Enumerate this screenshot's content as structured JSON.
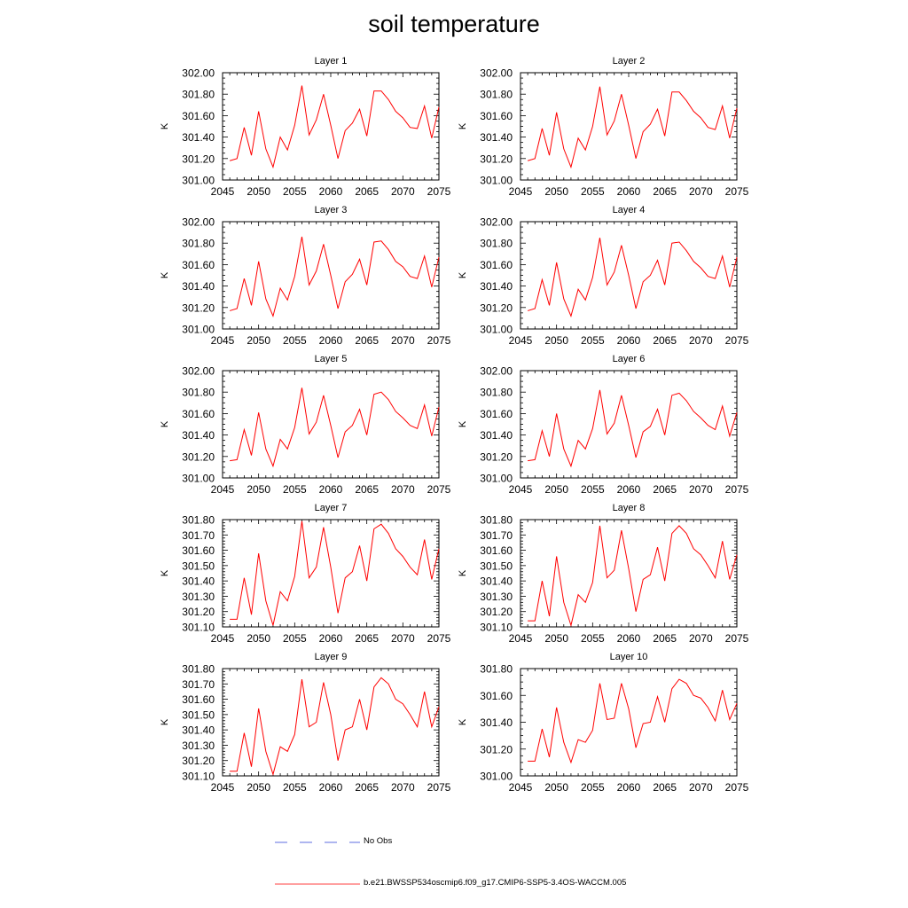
{
  "title": "soil temperature",
  "legend": {
    "obs_label": "No Obs",
    "model_label": "b.e21.BWSSP534oscmip6.f09_g17.CMIP6-SSP5-3.4OS-WACCM.005",
    "obs_color": "#2a3fd6",
    "model_color": "#ff0000"
  },
  "chart_data": [
    {
      "type": "line",
      "title": "Layer 1",
      "ylabel": "K",
      "xlim": [
        2045,
        2075
      ],
      "ylim": [
        301.0,
        302.0
      ],
      "yticks": [
        "301.00",
        "301.20",
        "301.40",
        "301.60",
        "301.80",
        "302.00"
      ],
      "xticks": [
        "2045",
        "2050",
        "2055",
        "2060",
        "2065",
        "2070",
        "2075"
      ],
      "series": [
        {
          "color": "#ff0000",
          "x": [
            2046,
            2047,
            2048,
            2049,
            2050,
            2051,
            2052,
            2053,
            2054,
            2055,
            2056,
            2057,
            2058,
            2059,
            2060,
            2061,
            2062,
            2063,
            2064,
            2065,
            2066,
            2067,
            2068,
            2069,
            2070,
            2071,
            2072,
            2073,
            2074,
            2075
          ],
          "values": [
            301.18,
            301.2,
            301.49,
            301.23,
            301.64,
            301.29,
            301.12,
            301.4,
            301.28,
            301.51,
            301.88,
            301.42,
            301.56,
            301.8,
            301.51,
            301.2,
            301.46,
            301.53,
            301.66,
            301.41,
            301.83,
            301.83,
            301.75,
            301.64,
            301.58,
            301.49,
            301.48,
            301.69,
            301.39,
            301.68
          ]
        }
      ]
    },
    {
      "type": "line",
      "title": "Layer 2",
      "ylabel": "K",
      "xlim": [
        2045,
        2075
      ],
      "ylim": [
        301.0,
        302.0
      ],
      "yticks": [
        "301.00",
        "301.20",
        "301.40",
        "301.60",
        "301.80",
        "302.00"
      ],
      "xticks": [
        "2045",
        "2050",
        "2055",
        "2060",
        "2065",
        "2070",
        "2075"
      ],
      "series": [
        {
          "color": "#ff0000",
          "x": [
            2046,
            2047,
            2048,
            2049,
            2050,
            2051,
            2052,
            2053,
            2054,
            2055,
            2056,
            2057,
            2058,
            2059,
            2060,
            2061,
            2062,
            2063,
            2064,
            2065,
            2066,
            2067,
            2068,
            2069,
            2070,
            2071,
            2072,
            2073,
            2074,
            2075
          ],
          "values": [
            301.18,
            301.2,
            301.48,
            301.23,
            301.63,
            301.29,
            301.12,
            301.39,
            301.28,
            301.5,
            301.87,
            301.42,
            301.55,
            301.8,
            301.51,
            301.2,
            301.45,
            301.52,
            301.66,
            301.41,
            301.82,
            301.82,
            301.74,
            301.64,
            301.58,
            301.49,
            301.47,
            301.69,
            301.39,
            301.67
          ]
        }
      ]
    },
    {
      "type": "line",
      "title": "Layer 3",
      "ylabel": "K",
      "xlim": [
        2045,
        2075
      ],
      "ylim": [
        301.0,
        302.0
      ],
      "yticks": [
        "301.00",
        "301.20",
        "301.40",
        "301.60",
        "301.80",
        "302.00"
      ],
      "xticks": [
        "2045",
        "2050",
        "2055",
        "2060",
        "2065",
        "2070",
        "2075"
      ],
      "series": [
        {
          "color": "#ff0000",
          "x": [
            2046,
            2047,
            2048,
            2049,
            2050,
            2051,
            2052,
            2053,
            2054,
            2055,
            2056,
            2057,
            2058,
            2059,
            2060,
            2061,
            2062,
            2063,
            2064,
            2065,
            2066,
            2067,
            2068,
            2069,
            2070,
            2071,
            2072,
            2073,
            2074,
            2075
          ],
          "values": [
            301.17,
            301.19,
            301.47,
            301.22,
            301.63,
            301.28,
            301.12,
            301.38,
            301.27,
            301.49,
            301.86,
            301.41,
            301.54,
            301.79,
            301.5,
            301.19,
            301.44,
            301.51,
            301.65,
            301.41,
            301.81,
            301.82,
            301.74,
            301.63,
            301.58,
            301.49,
            301.47,
            301.68,
            301.39,
            301.67
          ]
        }
      ]
    },
    {
      "type": "line",
      "title": "Layer 4",
      "ylabel": "K",
      "xlim": [
        2045,
        2075
      ],
      "ylim": [
        301.0,
        302.0
      ],
      "yticks": [
        "301.00",
        "301.20",
        "301.40",
        "301.60",
        "301.80",
        "302.00"
      ],
      "xticks": [
        "2045",
        "2050",
        "2055",
        "2060",
        "2065",
        "2070",
        "2075"
      ],
      "series": [
        {
          "color": "#ff0000",
          "x": [
            2046,
            2047,
            2048,
            2049,
            2050,
            2051,
            2052,
            2053,
            2054,
            2055,
            2056,
            2057,
            2058,
            2059,
            2060,
            2061,
            2062,
            2063,
            2064,
            2065,
            2066,
            2067,
            2068,
            2069,
            2070,
            2071,
            2072,
            2073,
            2074,
            2075
          ],
          "values": [
            301.17,
            301.19,
            301.46,
            301.22,
            301.62,
            301.28,
            301.12,
            301.37,
            301.27,
            301.48,
            301.85,
            301.41,
            301.53,
            301.78,
            301.5,
            301.19,
            301.44,
            301.5,
            301.64,
            301.41,
            301.8,
            301.81,
            301.73,
            301.63,
            301.57,
            301.49,
            301.47,
            301.68,
            301.39,
            301.67
          ]
        }
      ]
    },
    {
      "type": "line",
      "title": "Layer 5",
      "ylabel": "K",
      "xlim": [
        2045,
        2075
      ],
      "ylim": [
        301.0,
        302.0
      ],
      "yticks": [
        "301.00",
        "301.20",
        "301.40",
        "301.60",
        "301.80",
        "302.00"
      ],
      "xticks": [
        "2045",
        "2050",
        "2055",
        "2060",
        "2065",
        "2070",
        "2075"
      ],
      "series": [
        {
          "color": "#ff0000",
          "x": [
            2046,
            2047,
            2048,
            2049,
            2050,
            2051,
            2052,
            2053,
            2054,
            2055,
            2056,
            2057,
            2058,
            2059,
            2060,
            2061,
            2062,
            2063,
            2064,
            2065,
            2066,
            2067,
            2068,
            2069,
            2070,
            2071,
            2072,
            2073,
            2074,
            2075
          ],
          "values": [
            301.16,
            301.17,
            301.45,
            301.21,
            301.61,
            301.27,
            301.11,
            301.36,
            301.27,
            301.47,
            301.84,
            301.41,
            301.52,
            301.77,
            301.49,
            301.19,
            301.43,
            301.49,
            301.64,
            301.4,
            301.78,
            301.8,
            301.73,
            301.62,
            301.56,
            301.49,
            301.46,
            301.68,
            301.39,
            301.66
          ]
        }
      ]
    },
    {
      "type": "line",
      "title": "Layer 6",
      "ylabel": "K",
      "xlim": [
        2045,
        2075
      ],
      "ylim": [
        301.0,
        302.0
      ],
      "yticks": [
        "301.00",
        "301.20",
        "301.40",
        "301.60",
        "301.80",
        "302.00"
      ],
      "xticks": [
        "2045",
        "2050",
        "2055",
        "2060",
        "2065",
        "2070",
        "2075"
      ],
      "series": [
        {
          "color": "#ff0000",
          "x": [
            2046,
            2047,
            2048,
            2049,
            2050,
            2051,
            2052,
            2053,
            2054,
            2055,
            2056,
            2057,
            2058,
            2059,
            2060,
            2061,
            2062,
            2063,
            2064,
            2065,
            2066,
            2067,
            2068,
            2069,
            2070,
            2071,
            2072,
            2073,
            2074,
            2075
          ],
          "values": [
            301.16,
            301.17,
            301.44,
            301.2,
            301.6,
            301.27,
            301.11,
            301.35,
            301.27,
            301.46,
            301.82,
            301.41,
            301.51,
            301.77,
            301.49,
            301.19,
            301.43,
            301.48,
            301.64,
            301.4,
            301.77,
            301.79,
            301.72,
            301.62,
            301.56,
            301.49,
            301.45,
            301.67,
            301.39,
            301.61
          ]
        }
      ]
    },
    {
      "type": "line",
      "title": "Layer 7",
      "ylabel": "K",
      "xlim": [
        2045,
        2075
      ],
      "ylim": [
        301.1,
        301.8
      ],
      "yticks": [
        "301.10",
        "301.20",
        "301.30",
        "301.40",
        "301.50",
        "301.60",
        "301.70",
        "301.80"
      ],
      "xticks": [
        "2045",
        "2050",
        "2055",
        "2060",
        "2065",
        "2070",
        "2075"
      ],
      "series": [
        {
          "color": "#ff0000",
          "x": [
            2046,
            2047,
            2048,
            2049,
            2050,
            2051,
            2052,
            2053,
            2054,
            2055,
            2056,
            2057,
            2058,
            2059,
            2060,
            2061,
            2062,
            2063,
            2064,
            2065,
            2066,
            2067,
            2068,
            2069,
            2070,
            2071,
            2072,
            2073,
            2074,
            2075
          ],
          "values": [
            301.15,
            301.15,
            301.42,
            301.18,
            301.58,
            301.27,
            301.11,
            301.33,
            301.27,
            301.43,
            301.79,
            301.42,
            301.49,
            301.75,
            301.49,
            301.19,
            301.42,
            301.46,
            301.63,
            301.4,
            301.74,
            301.77,
            301.71,
            301.61,
            301.56,
            301.49,
            301.44,
            301.67,
            301.41,
            301.61
          ]
        }
      ]
    },
    {
      "type": "line",
      "title": "Layer 8",
      "ylabel": "K",
      "xlim": [
        2045,
        2075
      ],
      "ylim": [
        301.1,
        301.8
      ],
      "yticks": [
        "301.10",
        "301.20",
        "301.30",
        "301.40",
        "301.50",
        "301.60",
        "301.70",
        "301.80"
      ],
      "xticks": [
        "2045",
        "2050",
        "2055",
        "2060",
        "2065",
        "2070",
        "2075"
      ],
      "series": [
        {
          "color": "#ff0000",
          "x": [
            2046,
            2047,
            2048,
            2049,
            2050,
            2051,
            2052,
            2053,
            2054,
            2055,
            2056,
            2057,
            2058,
            2059,
            2060,
            2061,
            2062,
            2063,
            2064,
            2065,
            2066,
            2067,
            2068,
            2069,
            2070,
            2071,
            2072,
            2073,
            2074,
            2075
          ],
          "values": [
            301.14,
            301.14,
            301.4,
            301.17,
            301.56,
            301.26,
            301.11,
            301.31,
            301.26,
            301.39,
            301.76,
            301.42,
            301.47,
            301.73,
            301.48,
            301.2,
            301.41,
            301.44,
            301.62,
            301.4,
            301.71,
            301.76,
            301.71,
            301.61,
            301.57,
            301.5,
            301.42,
            301.66,
            301.41,
            301.57
          ]
        }
      ]
    },
    {
      "type": "line",
      "title": "Layer 9",
      "ylabel": "K",
      "xlim": [
        2045,
        2075
      ],
      "ylim": [
        301.1,
        301.8
      ],
      "yticks": [
        "301.10",
        "301.20",
        "301.30",
        "301.40",
        "301.50",
        "301.60",
        "301.70",
        "301.80"
      ],
      "xticks": [
        "2045",
        "2050",
        "2055",
        "2060",
        "2065",
        "2070",
        "2075"
      ],
      "series": [
        {
          "color": "#ff0000",
          "x": [
            2046,
            2047,
            2048,
            2049,
            2050,
            2051,
            2052,
            2053,
            2054,
            2055,
            2056,
            2057,
            2058,
            2059,
            2060,
            2061,
            2062,
            2063,
            2064,
            2065,
            2066,
            2067,
            2068,
            2069,
            2070,
            2071,
            2072,
            2073,
            2074,
            2075
          ],
          "values": [
            301.13,
            301.13,
            301.38,
            301.16,
            301.54,
            301.26,
            301.11,
            301.29,
            301.26,
            301.37,
            301.73,
            301.42,
            301.45,
            301.71,
            301.5,
            301.2,
            301.4,
            301.42,
            301.6,
            301.4,
            301.68,
            301.74,
            301.7,
            301.6,
            301.57,
            301.5,
            301.42,
            301.65,
            301.42,
            301.55
          ]
        }
      ]
    },
    {
      "type": "line",
      "title": "Layer 10",
      "ylabel": "K",
      "xlim": [
        2045,
        2075
      ],
      "ylim": [
        301.0,
        301.8
      ],
      "yticks": [
        "301.00",
        "301.20",
        "301.40",
        "301.60",
        "301.80"
      ],
      "xticks": [
        "2045",
        "2050",
        "2055",
        "2060",
        "2065",
        "2070",
        "2075"
      ],
      "series": [
        {
          "color": "#ff0000",
          "x": [
            2046,
            2047,
            2048,
            2049,
            2050,
            2051,
            2052,
            2053,
            2054,
            2055,
            2056,
            2057,
            2058,
            2059,
            2060,
            2061,
            2062,
            2063,
            2064,
            2065,
            2066,
            2067,
            2068,
            2069,
            2070,
            2071,
            2072,
            2073,
            2074,
            2075
          ],
          "values": [
            301.11,
            301.11,
            301.35,
            301.14,
            301.51,
            301.25,
            301.1,
            301.27,
            301.25,
            301.34,
            301.69,
            301.42,
            301.43,
            301.69,
            301.5,
            301.21,
            301.39,
            301.4,
            301.59,
            301.4,
            301.65,
            301.72,
            301.69,
            301.6,
            301.58,
            301.51,
            301.41,
            301.64,
            301.42,
            301.54
          ]
        }
      ]
    }
  ]
}
